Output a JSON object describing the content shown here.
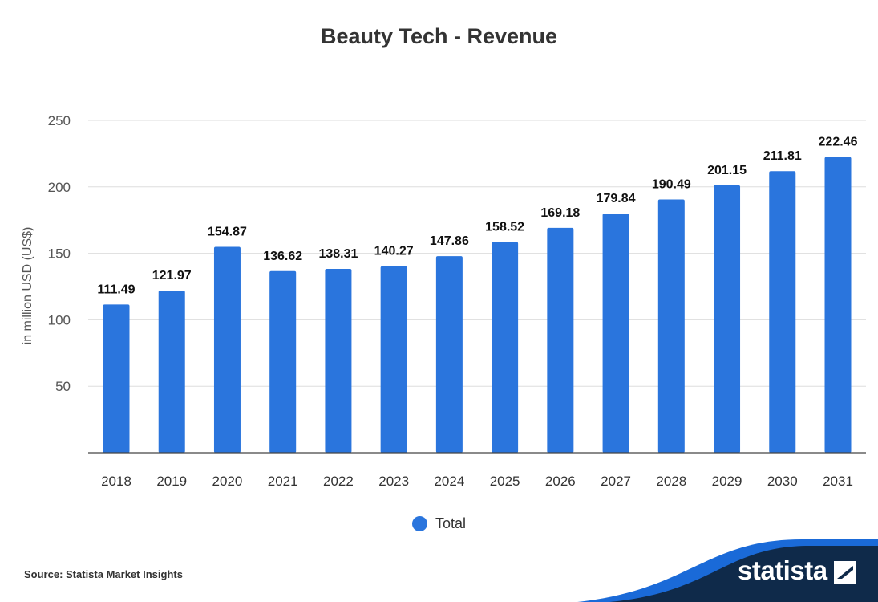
{
  "chart_data": {
    "type": "bar",
    "title": "Beauty Tech - Revenue",
    "ylabel": "in million USD (US$)",
    "xlabel": "",
    "categories": [
      "2018",
      "2019",
      "2020",
      "2021",
      "2022",
      "2023",
      "2024",
      "2025",
      "2026",
      "2027",
      "2028",
      "2029",
      "2030",
      "2031"
    ],
    "series": [
      {
        "name": "Total",
        "values": [
          111.49,
          121.97,
          154.87,
          136.62,
          138.31,
          140.27,
          147.86,
          158.52,
          169.18,
          179.84,
          190.49,
          201.15,
          211.81,
          222.46
        ]
      }
    ],
    "yticks": [
      "50",
      "100",
      "150",
      "200",
      "250"
    ],
    "ylim": [
      0,
      250
    ],
    "grid": true,
    "legend_position": "bottom",
    "colors": {
      "bar": "#2a75dd"
    }
  },
  "source": "Source: Statista Market Insights",
  "brand": {
    "name": "statista",
    "logo_icon": "statista-logo-icon",
    "colors": {
      "navy": "#0f2a4a",
      "accent": "#1a6ad8"
    }
  }
}
